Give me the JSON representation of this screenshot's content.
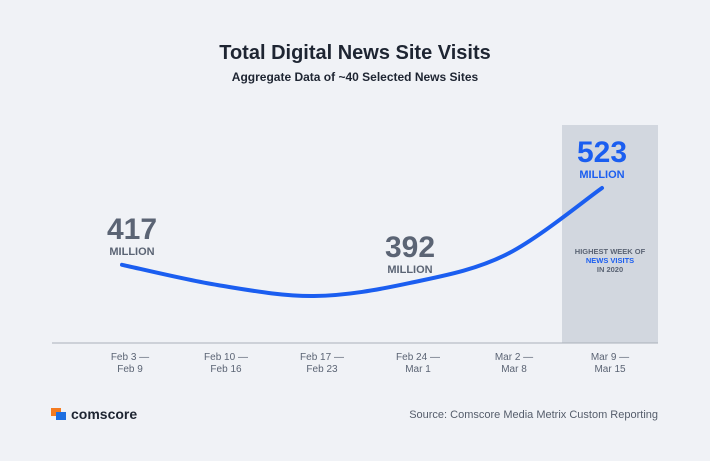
{
  "chart_data": {
    "type": "line",
    "title": "Total Digital News Site Visits",
    "subtitle": "Aggregate Data of ~40 Selected News Sites",
    "categories": [
      "Feb 3 —\nFeb 9",
      "Feb 10 —\nFeb 16",
      "Feb 17 —\nFeb 23",
      "Feb 24 —\nMar 1",
      "Mar 2 —\nMar 8",
      "Mar 9 —\nMar 15"
    ],
    "values": [
      417,
      389,
      374,
      392,
      431,
      523
    ],
    "value_labels": [
      "417",
      null,
      null,
      "392",
      null,
      "523"
    ],
    "unit": "MILLION",
    "color": "#1b5ef0",
    "label_color": "#5b6474",
    "highlight": {
      "category": "Mar 9 —\nMar 15",
      "color": "#d2d7df",
      "annotation": [
        "HIGHEST WEEK OF",
        "NEWS VISITS",
        "IN 2020"
      ]
    }
  },
  "footer": {
    "brand": "comscore",
    "source": "Source: Comscore Media Metrix Custom Reporting"
  }
}
